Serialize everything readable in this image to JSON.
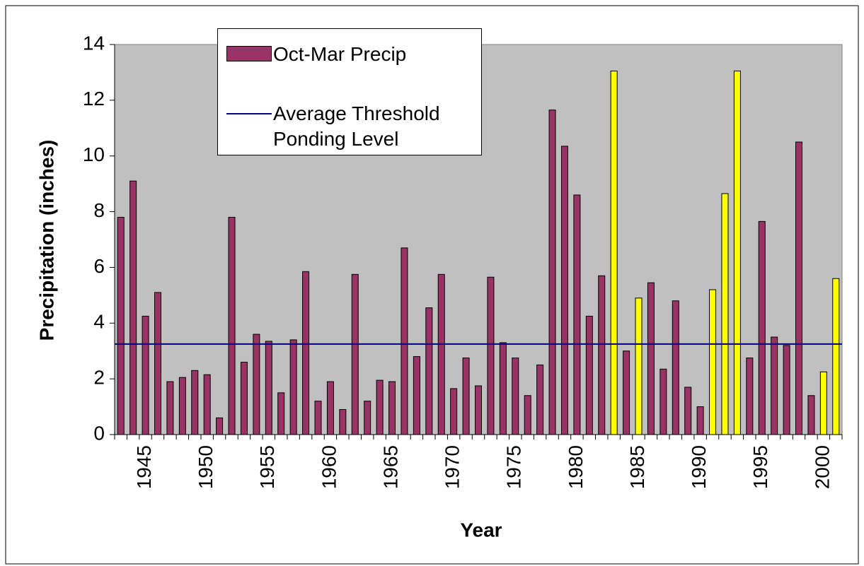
{
  "chart_data": {
    "type": "bar",
    "x_label": "Year",
    "y_label": "Precipitation (inches)",
    "categories": [
      null,
      null,
      "1945",
      null,
      null,
      null,
      null,
      "1950",
      null,
      null,
      null,
      null,
      "1955",
      null,
      null,
      null,
      null,
      "1960",
      null,
      null,
      null,
      null,
      "1965",
      null,
      null,
      null,
      null,
      "1970",
      null,
      null,
      null,
      null,
      "1975",
      null,
      null,
      null,
      null,
      "1980",
      null,
      null,
      null,
      null,
      "1985",
      null,
      null,
      null,
      null,
      "1990",
      null,
      null,
      null,
      null,
      "1995",
      null,
      null,
      null,
      null,
      "2000",
      null
    ],
    "series": [
      {
        "name": "Oct-Mar Precip",
        "color": "#993366",
        "values": [
          7.8,
          9.1,
          4.25,
          5.1,
          1.9,
          2.05,
          2.3,
          2.15,
          0.6,
          7.8,
          2.6,
          3.6,
          3.35,
          1.5,
          3.4,
          5.85,
          1.2,
          1.9,
          0.9,
          5.75,
          1.2,
          1.95,
          1.9,
          6.7,
          2.8,
          4.55,
          5.75,
          1.65,
          2.75,
          1.75,
          5.65,
          3.3,
          2.75,
          1.4,
          2.5,
          11.65,
          10.35,
          8.6,
          4.25,
          5.7,
          13.05,
          3.0,
          4.9,
          5.45,
          2.35,
          4.8,
          1.7,
          1.0,
          5.2,
          8.65,
          13.05,
          2.75,
          7.65,
          3.5,
          3.2,
          10.5,
          1.4,
          2.25,
          5.6
        ],
        "colors": [
          "#993366",
          "#993366",
          "#993366",
          "#993366",
          "#993366",
          "#993366",
          "#993366",
          "#993366",
          "#993366",
          "#993366",
          "#993366",
          "#993366",
          "#993366",
          "#993366",
          "#993366",
          "#993366",
          "#993366",
          "#993366",
          "#993366",
          "#993366",
          "#993366",
          "#993366",
          "#993366",
          "#993366",
          "#993366",
          "#993366",
          "#993366",
          "#993366",
          "#993366",
          "#993366",
          "#993366",
          "#993366",
          "#993366",
          "#993366",
          "#993366",
          "#993366",
          "#993366",
          "#993366",
          "#993366",
          "#993366",
          "#ffff00",
          "#993366",
          "#ffff00",
          "#993366",
          "#993366",
          "#993366",
          "#993366",
          "#993366",
          "#ffff00",
          "#ffff00",
          "#ffff00",
          "#993366",
          "#993366",
          "#993366",
          "#993366",
          "#993366",
          "#993366",
          "#ffff00",
          "#ffff00"
        ]
      }
    ],
    "threshold": {
      "name": "Average Threshold Ponding Level",
      "color": "#000080",
      "value": 3.25
    },
    "ylim": [
      0,
      14
    ],
    "yticks": [
      0,
      2,
      4,
      6,
      8,
      10,
      12,
      14
    ],
    "grid": false,
    "plot_background": "#c0c0c0",
    "legend": "top-left"
  }
}
